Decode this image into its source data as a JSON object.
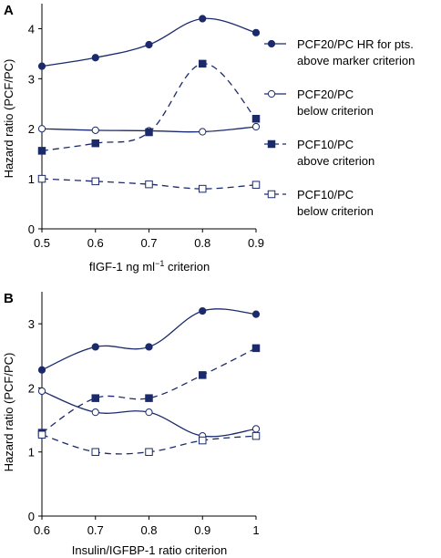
{
  "chart_data": [
    {
      "panel_label": "A",
      "type": "line",
      "xlabel": "fIGF-1 ng ml",
      "xlabel_sup": "−1",
      "xlabel_suffix": " criterion",
      "ylabel": "Hazard ratio (PCF/PC)",
      "x": [
        0.5,
        0.6,
        0.7,
        0.8,
        0.9
      ],
      "x_tick_labels": [
        "0.5",
        "0.6",
        "0.7",
        "0.8",
        "0.9"
      ],
      "xlim": [
        0.5,
        0.9
      ],
      "ylim": [
        0,
        4.5
      ],
      "y_ticks": [
        0,
        1,
        2,
        3,
        4
      ],
      "legend_placement": "right",
      "series": [
        {
          "name": "PCF20/PC HR for pts. above marker criterion",
          "legend_lines": [
            "PCF20/PC HR for pts.",
            "above marker criterion"
          ],
          "marker": "circle-filled",
          "dash": "solid",
          "values": [
            3.25,
            3.42,
            3.68,
            4.2,
            3.92
          ]
        },
        {
          "name": "PCF20/PC below criterion",
          "legend_lines": [
            "PCF20/PC",
            "below criterion"
          ],
          "marker": "circle-open",
          "dash": "solid",
          "values": [
            2.0,
            1.97,
            1.96,
            1.94,
            2.04
          ]
        },
        {
          "name": "PCF10/PC above criterion",
          "legend_lines": [
            "PCF10/PC",
            "above criterion"
          ],
          "marker": "square-filled",
          "dash": "dashed",
          "values": [
            1.56,
            1.71,
            1.93,
            3.3,
            2.2
          ]
        },
        {
          "name": "PCF10/PC below criterion",
          "legend_lines": [
            "PCF10/PC",
            "below criterion"
          ],
          "marker": "square-open",
          "dash": "dashed",
          "values": [
            1.0,
            0.95,
            0.89,
            0.8,
            0.88
          ]
        }
      ]
    },
    {
      "panel_label": "B",
      "type": "line",
      "xlabel": "Insulin/IGFBP-1 ratio criterion",
      "ylabel": "Hazard ratio (PCF/PC)",
      "x": [
        0.6,
        0.7,
        0.8,
        0.9,
        1.0
      ],
      "x_tick_labels": [
        "0.6",
        "0.7",
        "0.8",
        "0.9",
        "1"
      ],
      "xlim": [
        0.6,
        1.0
      ],
      "ylim": [
        0,
        3.5
      ],
      "y_ticks": [
        0,
        1,
        2,
        3
      ],
      "series": [
        {
          "name": "PCF20/PC HR above criterion",
          "marker": "circle-filled",
          "dash": "solid",
          "values": [
            2.28,
            2.64,
            2.64,
            3.2,
            3.15
          ]
        },
        {
          "name": "PCF20/PC below criterion",
          "marker": "circle-open",
          "dash": "solid",
          "values": [
            1.95,
            1.62,
            1.62,
            1.25,
            1.36
          ]
        },
        {
          "name": "PCF10/PC above criterion",
          "marker": "square-filled",
          "dash": "dashed",
          "values": [
            1.3,
            1.84,
            1.84,
            2.2,
            2.62
          ]
        },
        {
          "name": "PCF10/PC below criterion",
          "marker": "square-open",
          "dash": "dashed",
          "values": [
            1.27,
            1.0,
            1.0,
            1.18,
            1.25
          ]
        }
      ]
    }
  ],
  "colors": {
    "series": "#1b2a6b",
    "axis": "#000000"
  }
}
